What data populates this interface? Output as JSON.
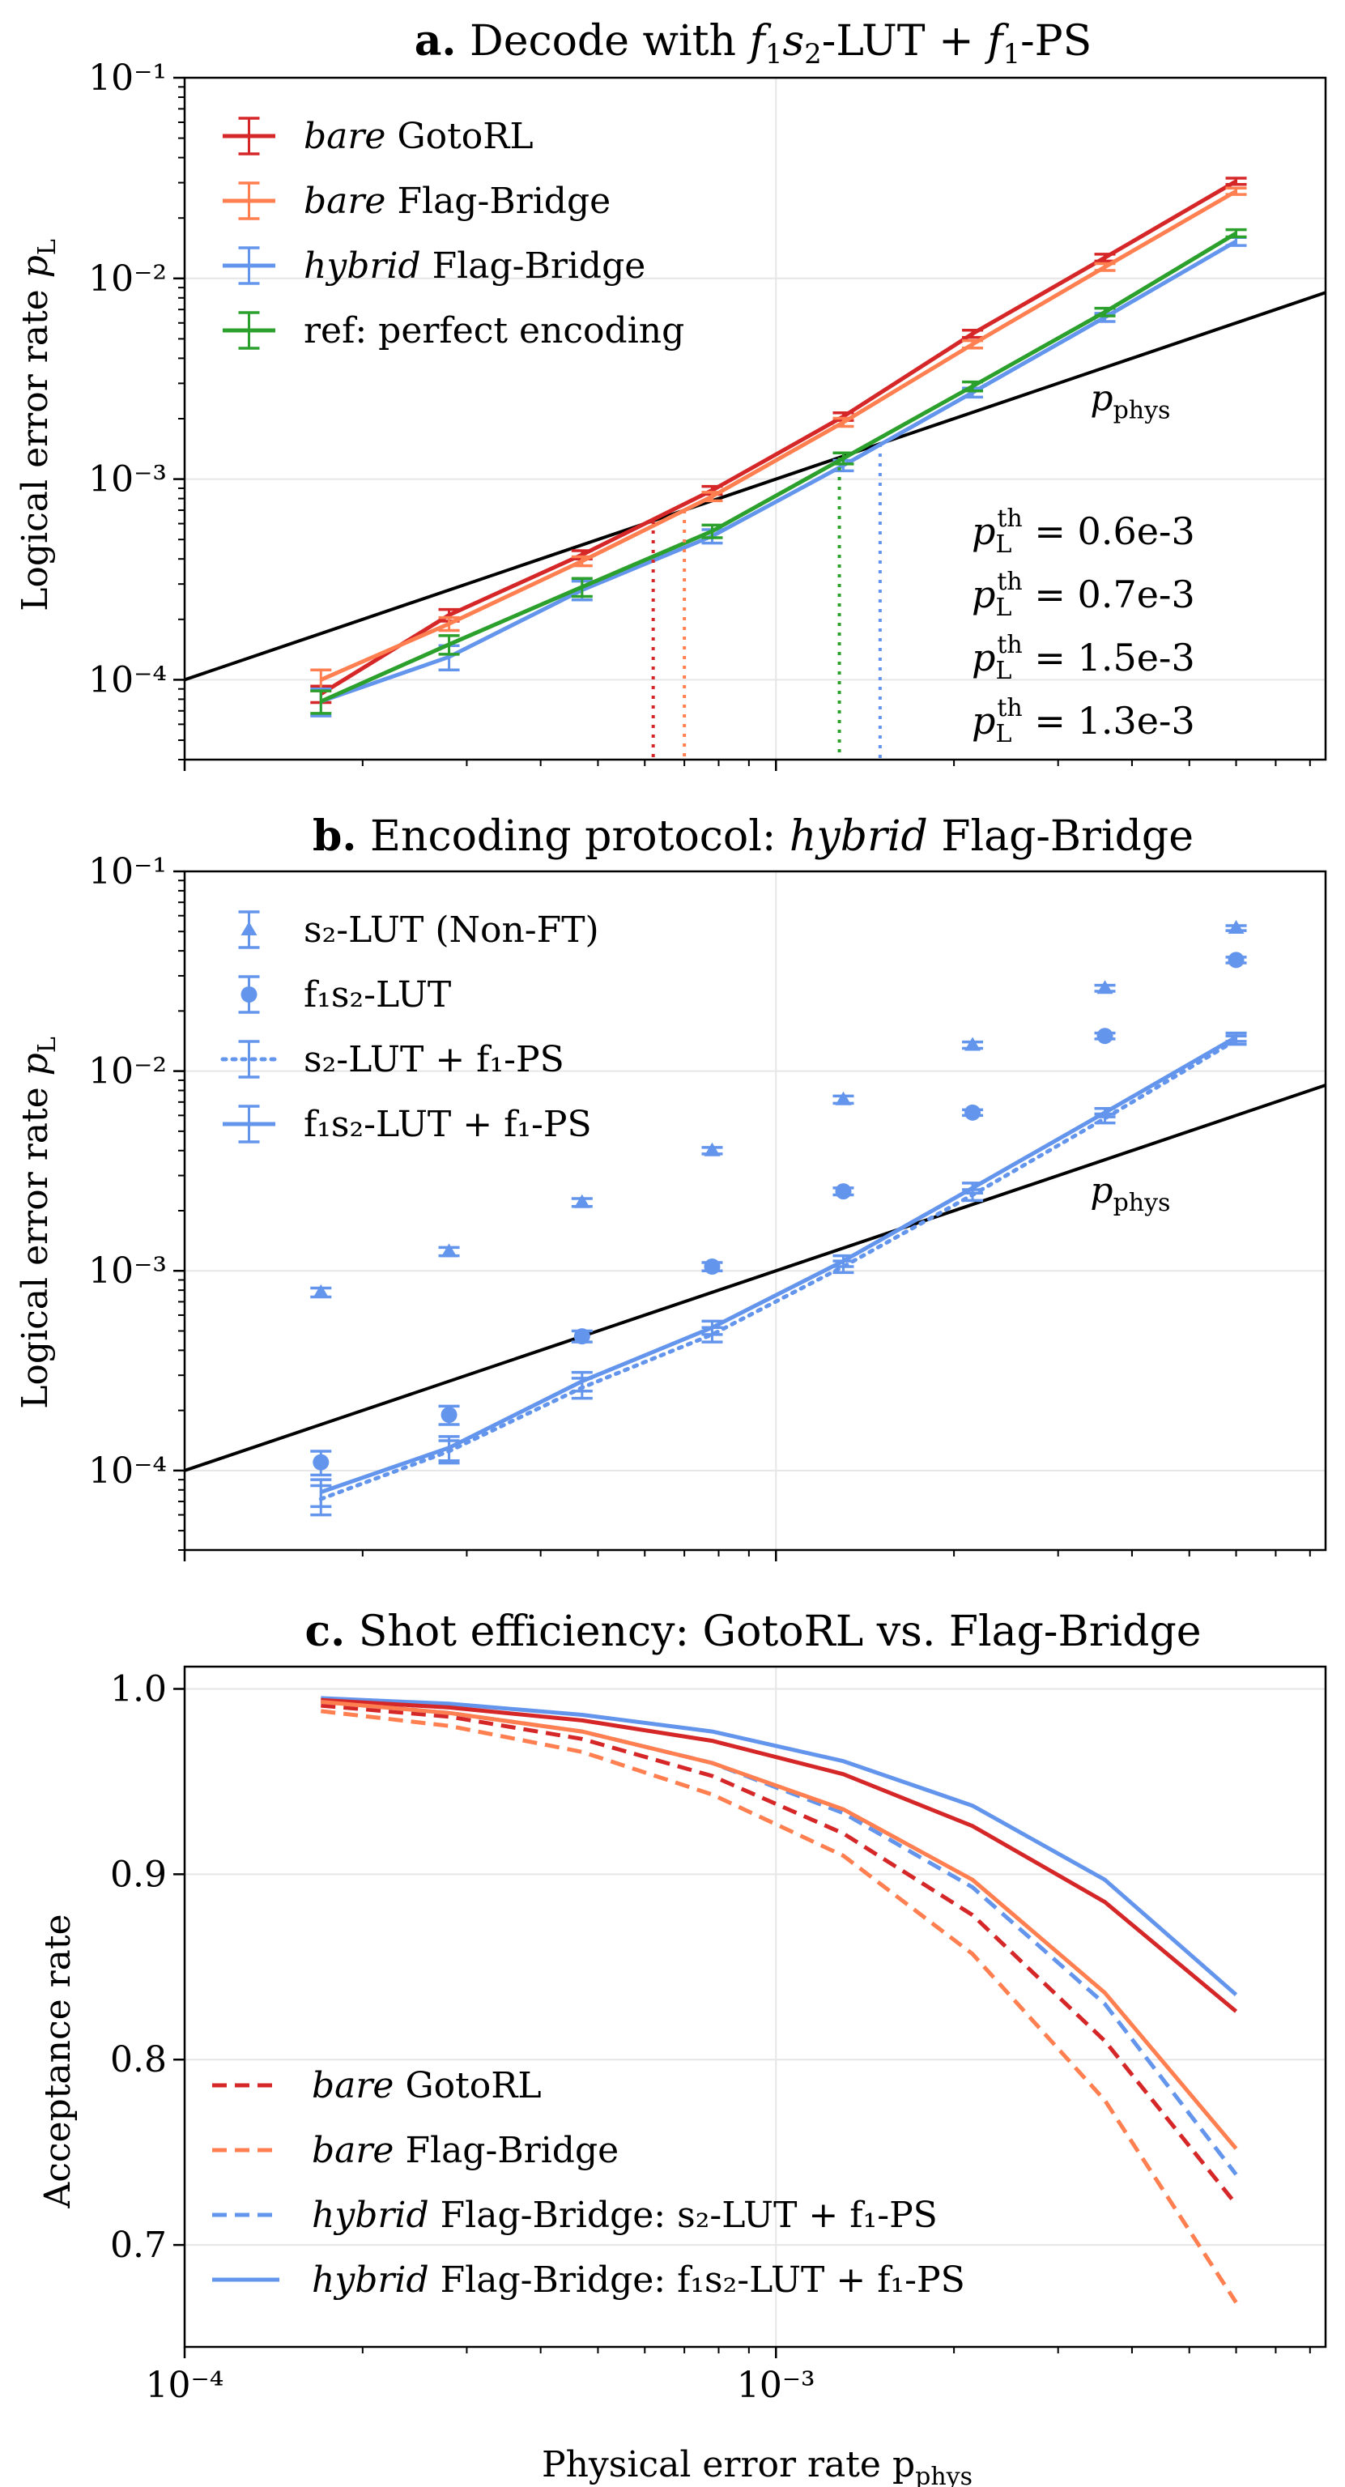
{
  "chart_data": [
    {
      "type": "line",
      "panel_id": "a",
      "title_bold": "a.",
      "title": "Decode with f₁s₂-LUT + f₁-PS",
      "xlabel": "",
      "ylabel": "Logical error rate p_L",
      "xscale": "log",
      "yscale": "log",
      "xlim": [
        0.0001,
        0.0085
      ],
      "ylim": [
        4e-05,
        0.1
      ],
      "yticks": [
        {
          "v": 0.0001,
          "label": "10⁻⁴"
        },
        {
          "v": 0.001,
          "label": "10⁻³"
        },
        {
          "v": 0.01,
          "label": "10⁻²"
        },
        {
          "v": 0.1,
          "label": "10⁻¹"
        }
      ],
      "xticks": [],
      "x": [
        0.00017,
        0.00028,
        0.00047,
        0.00078,
        0.0013,
        0.00215,
        0.0036,
        0.006
      ],
      "series": [
        {
          "name": "GotoRL",
          "label_italic": "bare",
          "label_rest": " GotoRL",
          "color": "#d62728",
          "style": "solid",
          "marker": "errorbar",
          "values": [
            8.5e-05,
            0.00021,
            0.00042,
            0.00088,
            0.00205,
            0.0053,
            0.0127,
            0.0305
          ],
          "errors": [
            8e-06,
            1.4e-05,
            2e-05,
            4e-05,
            9e-05,
            0.00022,
            0.0005,
            0.0011
          ]
        },
        {
          "name": "Flag-Bridge",
          "label_italic": "bare",
          "label_rest": " Flag-Bridge",
          "color": "#ff7f50",
          "style": "solid",
          "marker": "errorbar",
          "values": [
            0.0001,
            0.00019,
            0.00039,
            0.00082,
            0.00192,
            0.0047,
            0.0114,
            0.0272
          ],
          "errors": [
            1.2e-05,
            1.4e-05,
            2e-05,
            4e-05,
            9e-05,
            0.0002,
            0.00045,
            0.001
          ]
        },
        {
          "name": "Flag-Bridge",
          "label_italic": "hybrid",
          "label_rest": " Flag-Bridge",
          "color": "#6495ed",
          "style": "solid",
          "marker": "errorbar",
          "values": [
            7.8e-05,
            0.00013,
            0.00028,
            0.00052,
            0.00117,
            0.0027,
            0.0064,
            0.0153
          ],
          "errors": [
            1.2e-05,
            1.8e-05,
            3e-05,
            4e-05,
            7e-05,
            0.00014,
            0.0003,
            0.0007
          ]
        },
        {
          "name": "ref: perfect encoding",
          "label_italic": "",
          "label_rest": "ref: perfect encoding",
          "color": "#2ca02c",
          "style": "solid",
          "marker": "errorbar",
          "values": [
            7.8e-05,
            0.00015,
            0.00029,
            0.00055,
            0.00127,
            0.0029,
            0.0068,
            0.0168
          ],
          "errors": [
            1e-05,
            1.6e-05,
            3e-05,
            4e-05,
            8e-05,
            0.00015,
            0.0003,
            0.0007
          ]
        }
      ],
      "reference_line": {
        "label": "p_phys",
        "label_text": "p",
        "label_sub": "phys",
        "color": "#000000",
        "x_from": 0.0001,
        "x_to": 0.0085
      },
      "thresholds": [
        {
          "label_text": "p",
          "label_sub": "L",
          "label_sup": "th",
          "label_value": " = 0.6e-3",
          "x": 0.00062,
          "color": "#d62728"
        },
        {
          "label_text": "p",
          "label_sub": "L",
          "label_sup": "th",
          "label_value": " = 0.7e-3",
          "x": 0.0007,
          "color": "#ff7f50"
        },
        {
          "label_text": "p",
          "label_sub": "L",
          "label_sup": "th",
          "label_value": " = 1.5e-3",
          "x": 0.0015,
          "color": "#6495ed"
        },
        {
          "label_text": "p",
          "label_sub": "L",
          "label_sup": "th",
          "label_value": " = 1.3e-3",
          "x": 0.00128,
          "color": "#2ca02c"
        }
      ],
      "legend": "top-left"
    },
    {
      "type": "line",
      "panel_id": "b",
      "title_bold": "b.",
      "title_plain": "Encoding protocol: ",
      "title_italic": "hybrid",
      "title_rest": " Flag-Bridge",
      "xlabel": "",
      "ylabel": "Logical error rate p_L",
      "xscale": "log",
      "yscale": "log",
      "xlim": [
        0.0001,
        0.0085
      ],
      "ylim": [
        4e-05,
        0.1
      ],
      "yticks": [
        {
          "v": 0.0001,
          "label": "10⁻⁴"
        },
        {
          "v": 0.001,
          "label": "10⁻³"
        },
        {
          "v": 0.01,
          "label": "10⁻²"
        },
        {
          "v": 0.1,
          "label": "10⁻¹"
        }
      ],
      "xticks": [],
      "x": [
        0.00017,
        0.00028,
        0.00047,
        0.00078,
        0.0013,
        0.00215,
        0.0036,
        0.006
      ],
      "series": [
        {
          "name": "s₂-LUT (Non-FT)",
          "color": "#6495ed",
          "style": "none",
          "marker": "triangle",
          "values": [
            0.00078,
            0.00125,
            0.0022,
            0.004,
            0.0072,
            0.0135,
            0.026,
            0.052
          ],
          "errors": [
            4e-05,
            6e-05,
            0.0001,
            0.00015,
            0.0003,
            0.0005,
            0.0009,
            0.0015
          ]
        },
        {
          "name": "f₁s₂-LUT",
          "color": "#6495ed",
          "style": "none",
          "marker": "circle",
          "values": [
            0.00011,
            0.00019,
            0.00047,
            0.00105,
            0.0025,
            0.0062,
            0.015,
            0.036
          ],
          "errors": [
            1.5e-05,
            2e-05,
            3e-05,
            5e-05,
            0.0001,
            0.0002,
            0.0005,
            0.0012
          ]
        },
        {
          "name": "s₂-LUT + f₁-PS",
          "color": "#6495ed",
          "style": "dotted",
          "marker": "errorbar",
          "values": [
            7.2e-05,
            0.000125,
            0.00026,
            0.00048,
            0.00105,
            0.0024,
            0.0058,
            0.0143
          ],
          "errors": [
            1.2e-05,
            1.6e-05,
            3e-05,
            4e-05,
            7e-05,
            0.00015,
            0.0003,
            0.0007
          ]
        },
        {
          "name": "f₁s₂-LUT + f₁-PS",
          "color": "#6495ed",
          "style": "solid",
          "marker": "errorbar",
          "values": [
            7.8e-05,
            0.00013,
            0.00028,
            0.00052,
            0.00112,
            0.0026,
            0.0062,
            0.0148
          ],
          "errors": [
            1.2e-05,
            1.8e-05,
            3e-05,
            4e-05,
            7e-05,
            0.00015,
            0.0003,
            0.0007
          ]
        }
      ],
      "reference_line": {
        "label": "p_phys",
        "label_text": "p",
        "label_sub": "phys",
        "color": "#000000",
        "x_from": 0.0001,
        "x_to": 0.0085
      },
      "legend": "top-left"
    },
    {
      "type": "line",
      "panel_id": "c",
      "title_bold": "c.",
      "title": "Shot efficiency: GotoRL vs. Flag-Bridge",
      "xlabel": "Physical error rate p_phys",
      "xlabel_text": "Physical error rate p",
      "xlabel_sub": "phys",
      "ylabel": "Acceptance rate",
      "xscale": "log",
      "yscale": "linear",
      "xlim": [
        0.0001,
        0.0085
      ],
      "ylim": [
        0.645,
        1.012
      ],
      "yticks": [
        {
          "v": 0.7,
          "label": "0.7"
        },
        {
          "v": 0.8,
          "label": "0.8"
        },
        {
          "v": 0.9,
          "label": "0.9"
        },
        {
          "v": 1.0,
          "label": "1.0"
        }
      ],
      "xticks": [
        {
          "v": 0.0001,
          "label": "10⁻⁴"
        },
        {
          "v": 0.001,
          "label": "10⁻³"
        }
      ],
      "x": [
        0.00017,
        0.00028,
        0.00047,
        0.00078,
        0.0013,
        0.00215,
        0.0036,
        0.006
      ],
      "series": [
        {
          "name": "GotoRL (dashed)",
          "label_italic": "bare",
          "label_rest": " GotoRL",
          "color": "#d62728",
          "style": "dashed",
          "in_legend": true,
          "values": [
            0.991,
            0.985,
            0.973,
            0.953,
            0.922,
            0.878,
            0.81,
            0.722
          ]
        },
        {
          "name": "Flag-Bridge (dashed)",
          "label_italic": "bare",
          "label_rest": " Flag-Bridge",
          "color": "#ff7f50",
          "style": "dashed",
          "in_legend": true,
          "values": [
            0.988,
            0.98,
            0.966,
            0.943,
            0.91,
            0.857,
            0.778,
            0.669
          ]
        },
        {
          "name": "hybrid s₂ (dashed)",
          "label_italic": "hybrid",
          "label_rest": " Flag-Bridge: s₂-LUT + f₁-PS",
          "color": "#6495ed",
          "style": "dashed",
          "in_legend": true,
          "values": [
            0.993,
            0.987,
            0.977,
            0.96,
            0.933,
            0.893,
            0.83,
            0.738
          ]
        },
        {
          "name": "hybrid f₁s₂ (solid)",
          "label_italic": "hybrid",
          "label_rest": " Flag-Bridge: f₁s₂-LUT + f₁-PS",
          "color": "#6495ed",
          "style": "solid",
          "in_legend": true,
          "values": [
            0.995,
            0.992,
            0.986,
            0.977,
            0.961,
            0.937,
            0.897,
            0.835
          ]
        },
        {
          "name": "GotoRL (solid)",
          "color": "#d62728",
          "style": "solid",
          "in_legend": false,
          "values": [
            0.994,
            0.99,
            0.983,
            0.972,
            0.954,
            0.926,
            0.885,
            0.826
          ]
        },
        {
          "name": "Flag-Bridge (solid)",
          "color": "#ff7f50",
          "style": "solid",
          "in_legend": false,
          "values": [
            0.993,
            0.987,
            0.977,
            0.96,
            0.935,
            0.897,
            0.836,
            0.752
          ]
        }
      ],
      "legend": "bottom-left"
    }
  ]
}
